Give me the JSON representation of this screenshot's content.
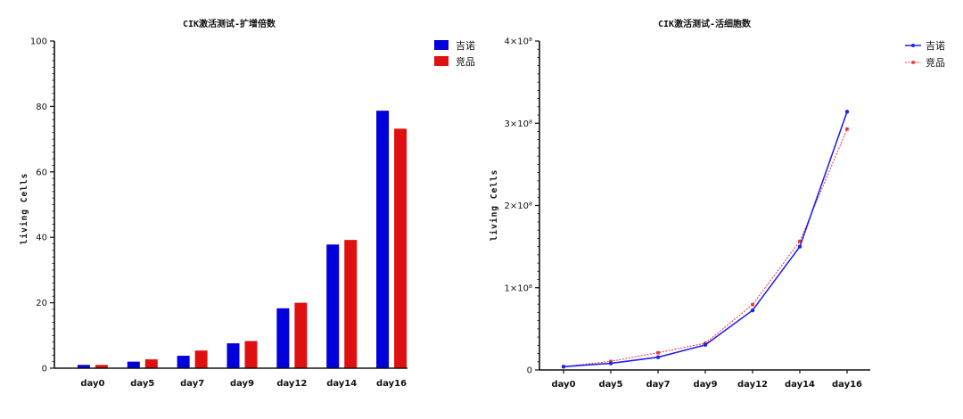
{
  "chart_data": [
    {
      "type": "bar",
      "title": "CIK激活测试-扩增倍数",
      "ylabel": "living Cells",
      "xlabel": "",
      "ylim": [
        0,
        100
      ],
      "yticks": [
        "0",
        "20",
        "40",
        "60",
        "80",
        "100"
      ],
      "categories": [
        "day0",
        "day5",
        "day7",
        "day9",
        "day12",
        "day14",
        "day16"
      ],
      "legend_position": "top-right",
      "series": [
        {
          "name": "吉诺",
          "color": "#0000dd",
          "values": [
            1,
            2,
            3.8,
            7.6,
            18.3,
            37.8,
            78.7
          ]
        },
        {
          "name": "竞品",
          "color": "#e01010",
          "values": [
            1,
            2.7,
            5.4,
            8.3,
            20,
            39.2,
            73.2
          ]
        }
      ],
      "grid": false
    },
    {
      "type": "line",
      "title": "CIK激活测试-活细胞数",
      "ylabel": "living Cells",
      "xlabel": "",
      "ylim": [
        0,
        400000000
      ],
      "yticks": [
        "0",
        "1×10⁸",
        "2×10⁸",
        "3×10⁸",
        "4×10⁸"
      ],
      "categories": [
        "day0",
        "day5",
        "day7",
        "day9",
        "day12",
        "day14",
        "day16"
      ],
      "legend_position": "top-right",
      "series": [
        {
          "name": "吉诺",
          "color": "#2222ee",
          "values": [
            4000000,
            8000000,
            15500000,
            30500000,
            72500000,
            150000000,
            314000000
          ]
        },
        {
          "name": "竞品",
          "color": "#ee3030",
          "values": [
            4000000,
            10500000,
            21000000,
            32500000,
            79500000,
            156500000,
            293000000
          ]
        }
      ],
      "grid": false
    }
  ]
}
